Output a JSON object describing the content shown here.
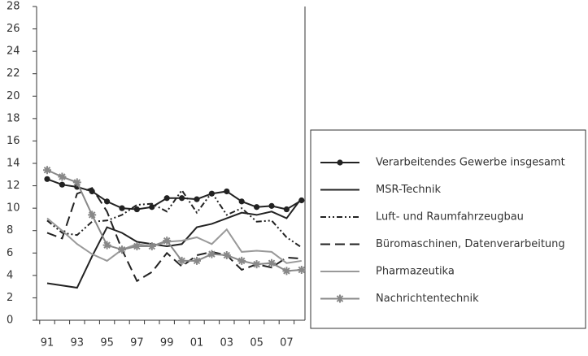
{
  "chart_data": {
    "type": "line",
    "categories": [
      "91",
      null,
      "93",
      null,
      "95",
      null,
      "97",
      null,
      "99",
      null,
      "01",
      null,
      "03",
      null,
      "05",
      null,
      "07",
      null
    ],
    "ylim": [
      0,
      28
    ],
    "yticks": [
      0,
      2,
      4,
      6,
      8,
      10,
      12,
      14,
      16,
      18,
      20,
      22,
      24,
      26,
      28
    ],
    "grid": false,
    "legend": "right",
    "series": [
      {
        "name": "Verarbeitendes Gewerbe insgesamt",
        "color": "#222222",
        "dash": "solid",
        "marker": "circle",
        "values": [
          12.6,
          12.1,
          11.9,
          11.5,
          10.6,
          10.0,
          9.9,
          10.1,
          10.9,
          10.9,
          10.8,
          11.3,
          11.5,
          10.6,
          10.1,
          10.2,
          9.9,
          10.7
        ]
      },
      {
        "name": "MSR-Technik",
        "color": "#222222",
        "dash": "solid",
        "marker": "none",
        "values": [
          3.3,
          3.1,
          2.9,
          5.7,
          8.3,
          7.8,
          7.0,
          6.8,
          6.6,
          6.8,
          8.3,
          8.6,
          9.1,
          9.6,
          9.4,
          9.7,
          9.1,
          10.9
        ]
      },
      {
        "name": "Luft- und Raumfahrzeugbau",
        "color": "#222222",
        "dash": "dashdotdot",
        "marker": "none",
        "values": [
          8.9,
          7.8,
          7.6,
          8.8,
          8.9,
          9.4,
          10.3,
          10.4,
          9.7,
          11.6,
          9.6,
          11.4,
          9.4,
          10.0,
          8.8,
          8.9,
          7.4,
          6.5
        ]
      },
      {
        "name": "Büromaschinen, Datenverarbeitung",
        "color": "#222222",
        "dash": "dashed",
        "marker": "none",
        "values": [
          7.8,
          7.3,
          11.3,
          11.8,
          9.7,
          6.3,
          3.5,
          4.3,
          6.0,
          4.8,
          5.8,
          6.1,
          5.8,
          4.5,
          5.0,
          4.7,
          5.6,
          5.5
        ]
      },
      {
        "name": "Pharmazeutika",
        "color": "#999999",
        "dash": "solid",
        "marker": "none",
        "values": [
          9.1,
          8.0,
          6.8,
          5.9,
          5.3,
          6.3,
          6.8,
          6.6,
          7.0,
          7.1,
          7.4,
          6.8,
          8.1,
          6.1,
          6.2,
          6.1,
          5.1,
          5.3
        ]
      },
      {
        "name": "Nachrichtentechnik",
        "color": "#888888",
        "dash": "solid",
        "marker": "star",
        "values": [
          13.4,
          12.8,
          12.3,
          9.4,
          6.7,
          6.3,
          6.6,
          6.6,
          7.1,
          5.3,
          5.3,
          5.9,
          5.8,
          5.3,
          5.0,
          5.1,
          4.4,
          4.5
        ]
      }
    ]
  }
}
